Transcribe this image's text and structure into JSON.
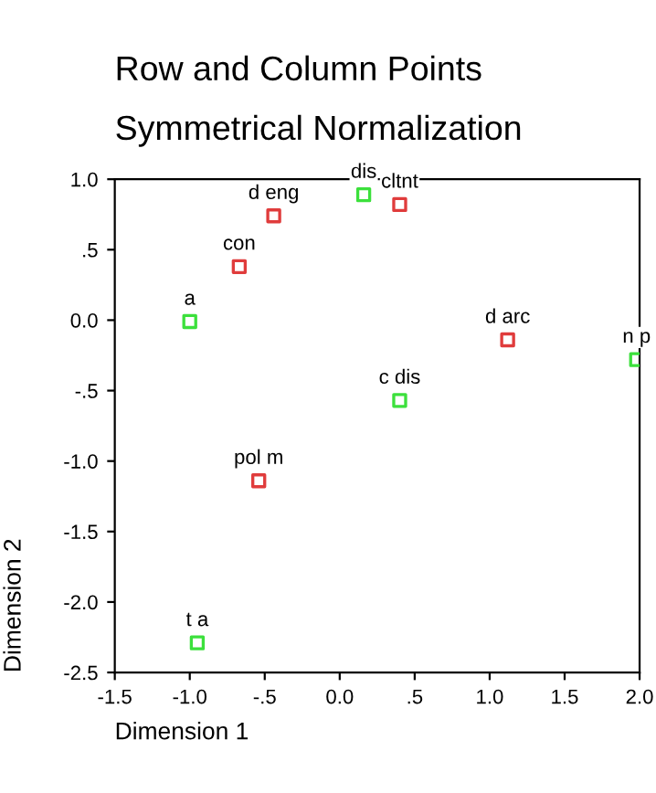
{
  "chart_data": {
    "type": "scatter",
    "title": "Row and Column Points",
    "subtitle": "Symmetrical Normalization",
    "xlabel": "Dimension 1",
    "ylabel": "Dimension 2",
    "series": [
      {
        "color": "#e03c3c",
        "x": [
          -0.67,
          -0.44,
          0.4,
          1.12,
          -0.54
        ],
        "values": [
          0.38,
          0.74,
          0.82,
          -0.14,
          -1.14
        ]
      },
      {
        "color": "#3ce03c",
        "x": [
          -1.0,
          0.16,
          0.4,
          1.98,
          -0.95
        ],
        "values": [
          -0.01,
          0.89,
          -0.57,
          -0.28,
          -2.29
        ]
      }
    ],
    "annotations": [
      {
        "text": "con",
        "x": -0.67,
        "y": 0.38
      },
      {
        "text": "d eng",
        "x": -0.44,
        "y": 0.74
      },
      {
        "text": "cltnt",
        "x": 0.4,
        "y": 0.82
      },
      {
        "text": "d arc",
        "x": 1.12,
        "y": -0.14
      },
      {
        "text": "pol m",
        "x": -0.54,
        "y": -1.14
      },
      {
        "text": "a",
        "x": -1.0,
        "y": -0.01
      },
      {
        "text": "dis",
        "x": 0.16,
        "y": 0.89
      },
      {
        "text": "c dis",
        "x": 0.4,
        "y": -0.57
      },
      {
        "text": "n p",
        "x": 1.98,
        "y": -0.28
      },
      {
        "text": "t a",
        "x": -0.95,
        "y": -2.29
      }
    ],
    "xlim": [
      -1.5,
      2.0
    ],
    "ylim": [
      -2.5,
      1.0
    ],
    "xticks": [
      {
        "value": -1.5,
        "label": "-1.5"
      },
      {
        "value": -1.0,
        "label": "-1.0"
      },
      {
        "value": -0.5,
        "label": "-.5"
      },
      {
        "value": 0.0,
        "label": "0.0"
      },
      {
        "value": 0.5,
        "label": ".5"
      },
      {
        "value": 1.0,
        "label": "1.0"
      },
      {
        "value": 1.5,
        "label": "1.5"
      },
      {
        "value": 2.0,
        "label": "2.0"
      }
    ],
    "yticks": [
      {
        "value": -2.5,
        "label": "-2.5"
      },
      {
        "value": -2.0,
        "label": "-2.0"
      },
      {
        "value": -1.5,
        "label": "-1.5"
      },
      {
        "value": -1.0,
        "label": "-1.0"
      },
      {
        "value": -0.5,
        "label": "-.5"
      },
      {
        "value": 0.0,
        "label": "0.0"
      },
      {
        "value": 0.5,
        "label": ".5"
      },
      {
        "value": 1.0,
        "label": "1.0"
      }
    ],
    "grid": false,
    "legend": false,
    "marker": "square"
  }
}
